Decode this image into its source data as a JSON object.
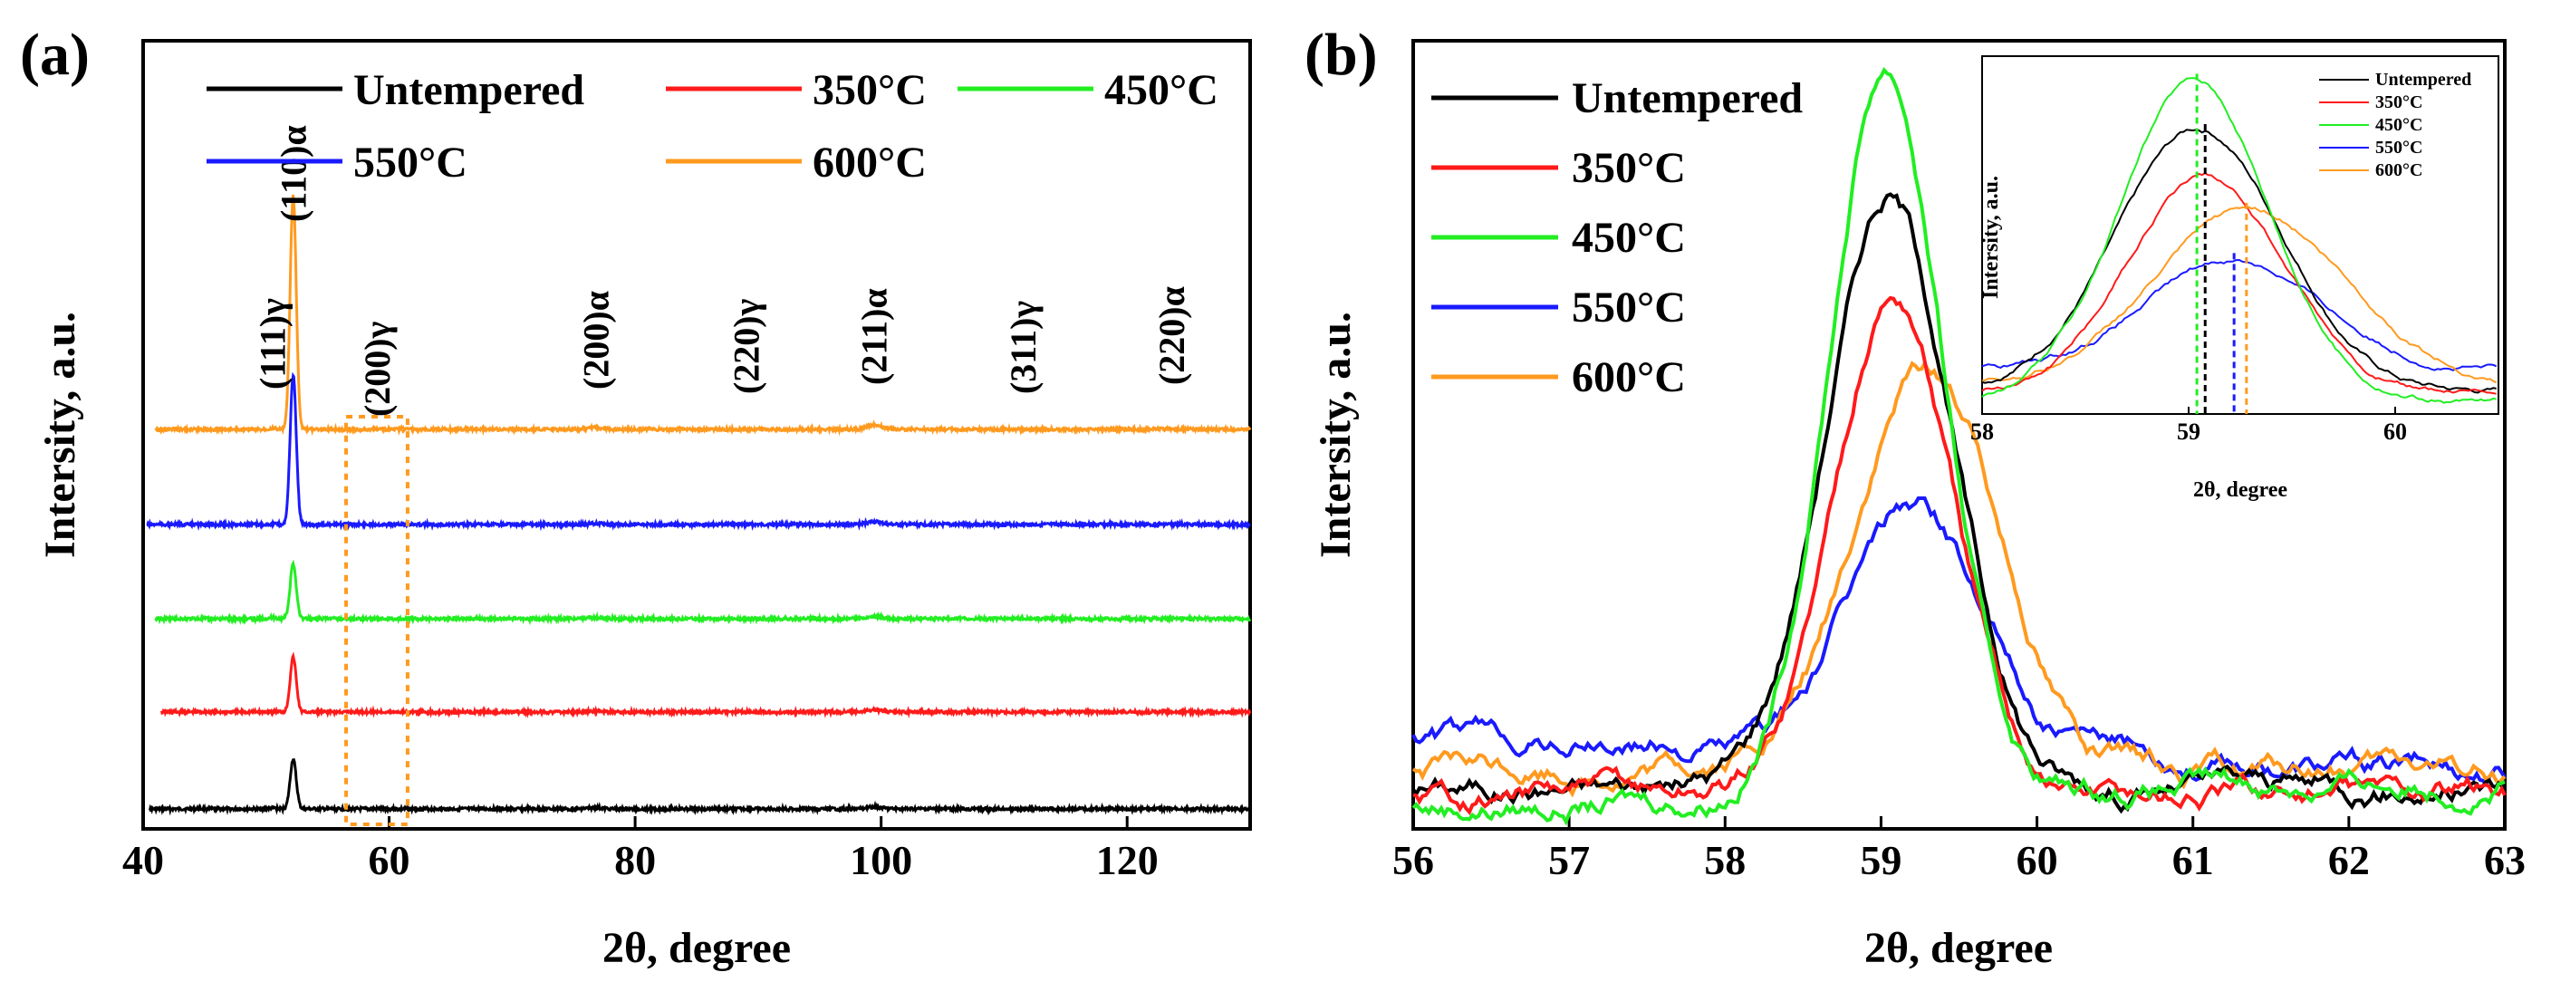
{
  "colors": {
    "untempered": "#000000",
    "t350": "#ff1a1a",
    "t450": "#22ee22",
    "t550": "#1a1aff",
    "t600": "#ff9a1f"
  },
  "chart_data": [
    {
      "type": "line",
      "panel_label": "(a)",
      "xlabel": "2θ, degree",
      "ylabel": "Intersity, a.u.",
      "xlim": [
        40,
        130
      ],
      "x_ticks": [
        40,
        60,
        80,
        100,
        120
      ],
      "y_ticks_shown": false,
      "stacked_offsets": true,
      "legend": [
        "Untempered",
        "350°C",
        "450°C",
        "550°C",
        "600°C"
      ],
      "peak_labels": [
        "(111)γ",
        "(110)α",
        "(200)γ",
        "(200)α",
        "(220)γ",
        "(211)α",
        "(311)γ",
        "(220)α"
      ],
      "peak_positions": [
        50.5,
        52.2,
        59.0,
        76.8,
        89.0,
        99.4,
        111.5,
        123.6
      ],
      "highlight_box": {
        "x_from": 56.5,
        "x_to": 61.5,
        "label": "dotted region enlarged in (b)"
      },
      "series": [
        {
          "name": "Untempered",
          "offset": 0,
          "start_x": 40.5,
          "peaks": [
            [
              50.5,
              0.1
            ],
            [
              52.2,
              1.0
            ],
            [
              59.0,
              0.03
            ],
            [
              76.8,
              0.1
            ],
            [
              99.4,
              0.16
            ],
            [
              123.6,
              0.04
            ]
          ]
        },
        {
          "name": "350°C",
          "offset": 1,
          "start_x": 41.5,
          "peaks": [
            [
              50.5,
              0.1
            ],
            [
              52.2,
              1.1
            ],
            [
              59.0,
              0.03
            ],
            [
              76.8,
              0.08
            ],
            [
              99.4,
              0.18
            ],
            [
              123.6,
              0.04
            ]
          ]
        },
        {
          "name": "450°C",
          "offset": 2,
          "start_x": 41.0,
          "peaks": [
            [
              50.5,
              0.12
            ],
            [
              52.2,
              1.1
            ],
            [
              59.0,
              0.05
            ],
            [
              76.8,
              0.1
            ],
            [
              99.4,
              0.2
            ],
            [
              123.6,
              0.04
            ]
          ]
        },
        {
          "name": "550°C",
          "offset": 3,
          "start_x": 40.3,
          "peaks": [
            [
              50.5,
              0.08
            ],
            [
              52.2,
              3.0
            ],
            [
              59.0,
              0.03
            ],
            [
              76.8,
              0.11
            ],
            [
              99.4,
              0.22
            ],
            [
              123.6,
              0.05
            ]
          ]
        },
        {
          "name": "600°C",
          "offset": 4,
          "start_x": 41.0,
          "peaks": [
            [
              50.5,
              0.12
            ],
            [
              52.2,
              4.7
            ],
            [
              59.0,
              0.05
            ],
            [
              76.8,
              0.19
            ],
            [
              99.4,
              0.37
            ],
            [
              123.6,
              0.09
            ]
          ]
        }
      ]
    },
    {
      "type": "line",
      "panel_label": "(b)",
      "xlabel": "2θ, degree",
      "ylabel": "Intersity, a.u.",
      "xlim": [
        56,
        63
      ],
      "ylim": [
        0,
        110
      ],
      "x_ticks": [
        56,
        57,
        58,
        59,
        60,
        61,
        62,
        63
      ],
      "legend": [
        "Untempered",
        "350°C",
        "450°C",
        "550°C",
        "600°C"
      ],
      "series": [
        {
          "name": "Untempered",
          "peak_center": 59.05,
          "peak_height": 83,
          "fwhm": 0.95,
          "baseline": 6,
          "tail_end": 6
        },
        {
          "name": "350°C",
          "peak_center": 59.08,
          "peak_height": 70,
          "fwhm": 0.9,
          "baseline": 5,
          "tail_end": 5
        },
        {
          "name": "450°C",
          "peak_center": 59.03,
          "peak_height": 102,
          "fwhm": 0.85,
          "baseline": 3,
          "tail_end": 7
        },
        {
          "name": "550°C",
          "peak_center": 59.22,
          "peak_height": 35,
          "fwhm": 1.0,
          "baseline": 13,
          "tail_end": 8
        },
        {
          "name": "600°C",
          "peak_center": 59.3,
          "peak_height": 56,
          "fwhm": 1.1,
          "baseline": 8,
          "tail_end": 8
        }
      ],
      "inset": {
        "xlim": [
          58,
          60.5
        ],
        "x_ticks": [
          58,
          59,
          60
        ],
        "xlabel": "2θ, degree",
        "ylabel": "Intersity, a.u.",
        "legend": [
          "Untempered",
          "350°C",
          "450°C",
          "550°C",
          "600°C"
        ],
        "peak_markers": [
          {
            "name": "450°C",
            "x": 59.04
          },
          {
            "name": "Untempered",
            "x": 59.08
          },
          {
            "name": "550°C",
            "x": 59.22
          },
          {
            "name": "600°C",
            "x": 59.28
          }
        ]
      }
    }
  ]
}
